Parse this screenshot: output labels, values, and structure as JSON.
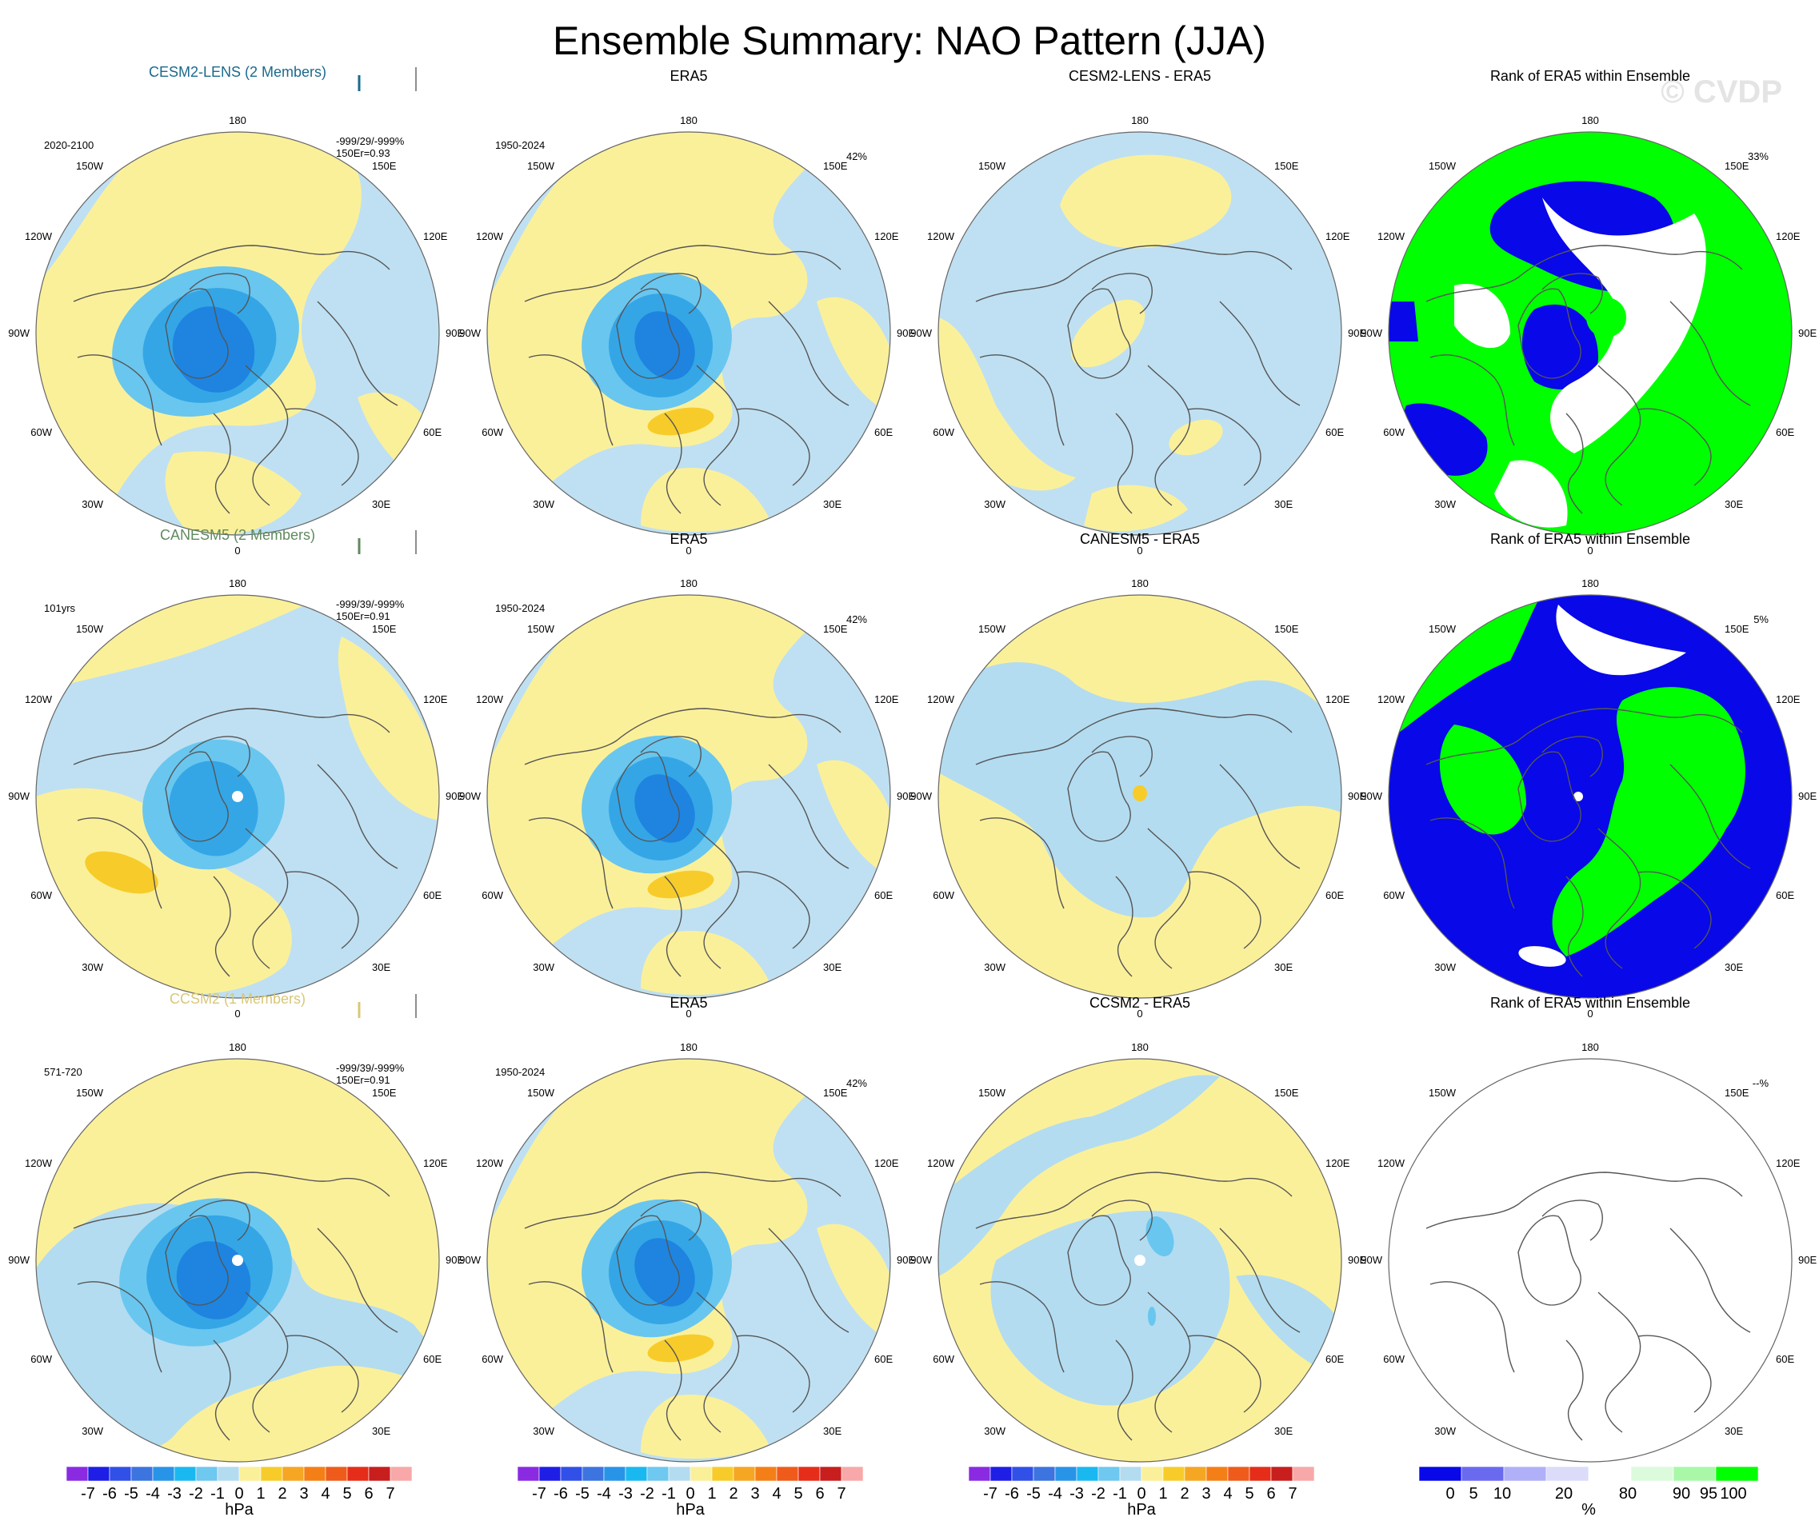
{
  "title": "Ensemble Summary: NAO Pattern (JJA)",
  "watermark": "© CVDP",
  "colors": {
    "land": "#bfe0f2",
    "neg1": "#b3dcf0",
    "neg2": "#69c6ef",
    "neg3": "#34a6e6",
    "neg4": "#1e84e0",
    "pos1": "#fbf09a",
    "pos2": "#f7cc2a",
    "rank_low": "#0808e8",
    "rank_high": "#00ff00",
    "coast": "#555555"
  },
  "lon_labels": {
    "top": "180",
    "bottom": "0",
    "upper_left": "150W",
    "upper_right": "150E",
    "mid_upper_left": "120W",
    "mid_upper_right": "120E",
    "left": "90W",
    "right": "90E",
    "mid_lower_left": "60W",
    "mid_lower_right": "60E",
    "lower_left": "30W",
    "lower_right": "30E"
  },
  "rows": [
    {
      "model": {
        "title": "CESM2-LENS (2 Members)",
        "title_color": "#1a6a8c",
        "period": "2020-2100",
        "stats1": "-999/29/-999%",
        "stats2": "150Er=0.93"
      },
      "era5": {
        "title": "ERA5",
        "period": "1950-2024",
        "pct": "42%"
      },
      "diff": {
        "title": "CESM2-LENS - ERA5"
      },
      "rank": {
        "title": "Rank of ERA5 within Ensemble",
        "pct": "33%"
      }
    },
    {
      "model": {
        "title": "CANESM5 (2 Members)",
        "title_color": "#5f8a5f",
        "period": "101yrs",
        "stats1": "-999/39/-999%",
        "stats2": "150Er=0.91"
      },
      "era5": {
        "title": "ERA5",
        "period": "1950-2024",
        "pct": "42%"
      },
      "diff": {
        "title": "CANESM5 - ERA5"
      },
      "rank": {
        "title": "Rank of ERA5 within Ensemble",
        "pct": "5%"
      }
    },
    {
      "model": {
        "title": "CCSM2 (1 Members)",
        "title_color": "#d8c878",
        "period": "571-720",
        "stats1": "-999/39/-999%",
        "stats2": "150Er=0.91"
      },
      "era5": {
        "title": "ERA5",
        "period": "1950-2024",
        "pct": "42%"
      },
      "diff": {
        "title": "CCSM2 - ERA5"
      },
      "rank": {
        "title": "Rank of ERA5 within Ensemble",
        "pct": "--%"
      }
    }
  ],
  "chart_data": [
    {
      "type": "heatmap",
      "projection": "polar-stereographic (north pole)",
      "variable": "NAO pattern, sea level pressure",
      "columns": [
        "model",
        "ERA5",
        "model - ERA5",
        "Rank of ERA5 within Ensemble"
      ],
      "colorbar_hpa": {
        "label": "hPa",
        "ticks": [
          "-7",
          "-6",
          "-5",
          "-4",
          "-3",
          "-2",
          "-1",
          "0",
          "1",
          "2",
          "3",
          "4",
          "5",
          "6",
          "7"
        ],
        "colors": [
          "#8a2be2",
          "#1e1ee6",
          "#3050e8",
          "#3c74e0",
          "#2894e8",
          "#1ab8f0",
          "#6ec8f0",
          "#b3dcf0",
          "#fbf09a",
          "#f7cc2a",
          "#f5a623",
          "#f57f17",
          "#ef5b1a",
          "#e52d1a",
          "#c81e1e",
          "#f8a8a8"
        ]
      },
      "colorbar_rank": {
        "label": "%",
        "ticks": [
          "0",
          "5",
          "10",
          "20",
          "80",
          "90",
          "95",
          "100"
        ],
        "colors": [
          "#0808e8",
          "#6a6af0",
          "#b0b0f8",
          "#dcdcfa",
          "#ffffff",
          "#dcfadc",
          "#a8f8a8",
          "#00ff00"
        ]
      }
    }
  ]
}
